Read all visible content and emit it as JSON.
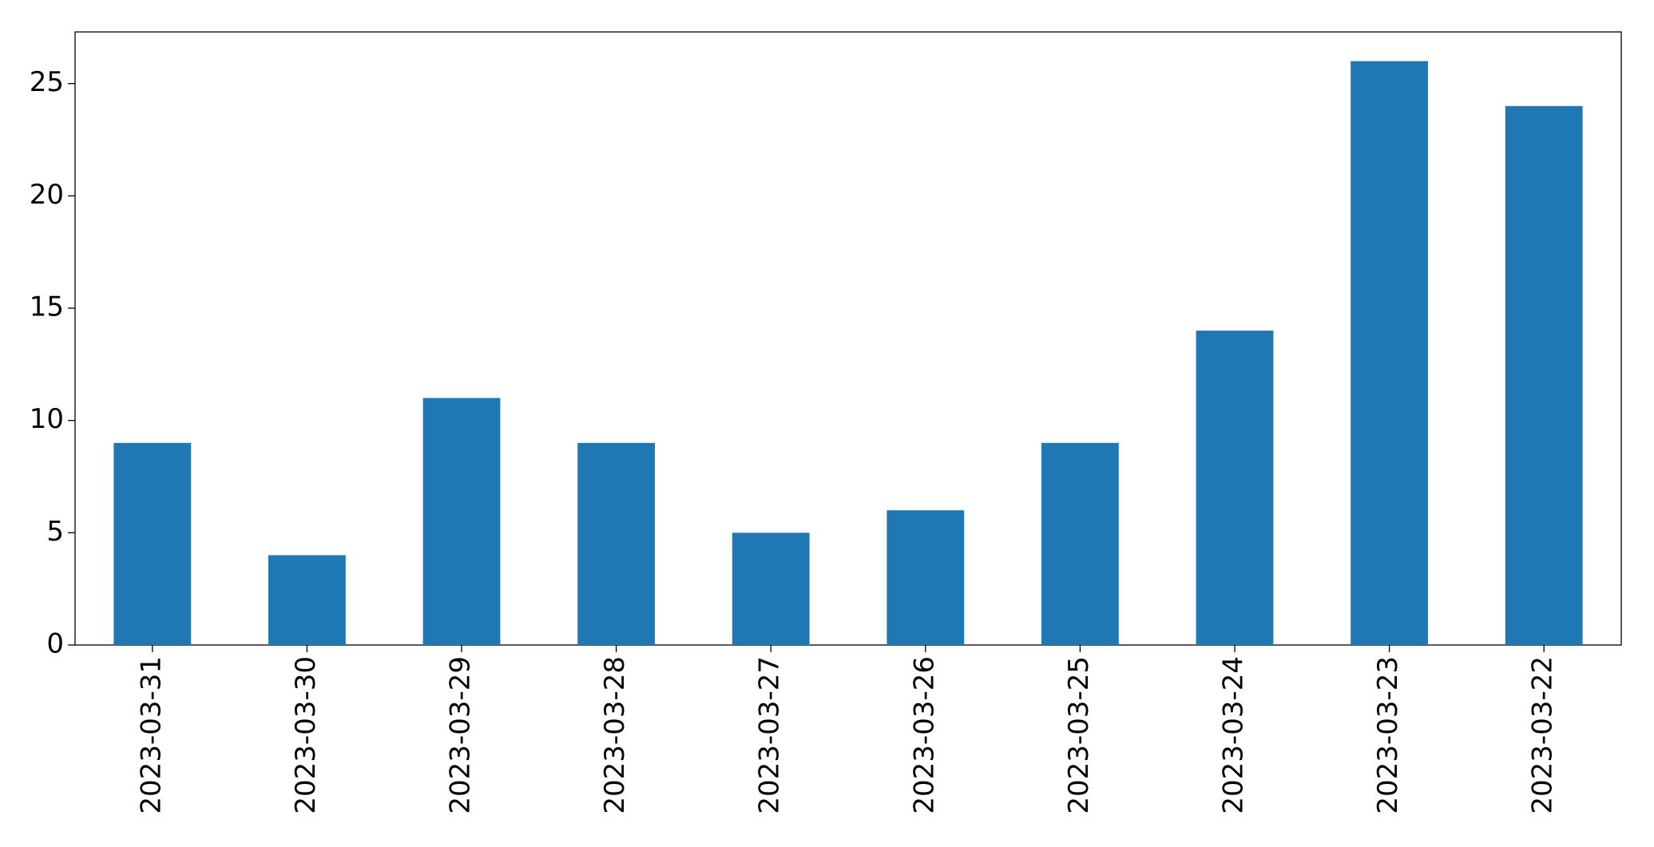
{
  "chart_data": {
    "type": "bar",
    "categories": [
      "2023-03-31",
      "2023-03-30",
      "2023-03-29",
      "2023-03-28",
      "2023-03-27",
      "2023-03-26",
      "2023-03-25",
      "2023-03-24",
      "2023-03-23",
      "2023-03-22"
    ],
    "values": [
      9,
      4,
      11,
      9,
      5,
      6,
      9,
      14,
      26,
      24
    ],
    "color": "#1f77b4",
    "ylim": [
      0,
      27.3
    ],
    "yticks": [
      0,
      5,
      10,
      15,
      20,
      25
    ],
    "grid": false
  }
}
